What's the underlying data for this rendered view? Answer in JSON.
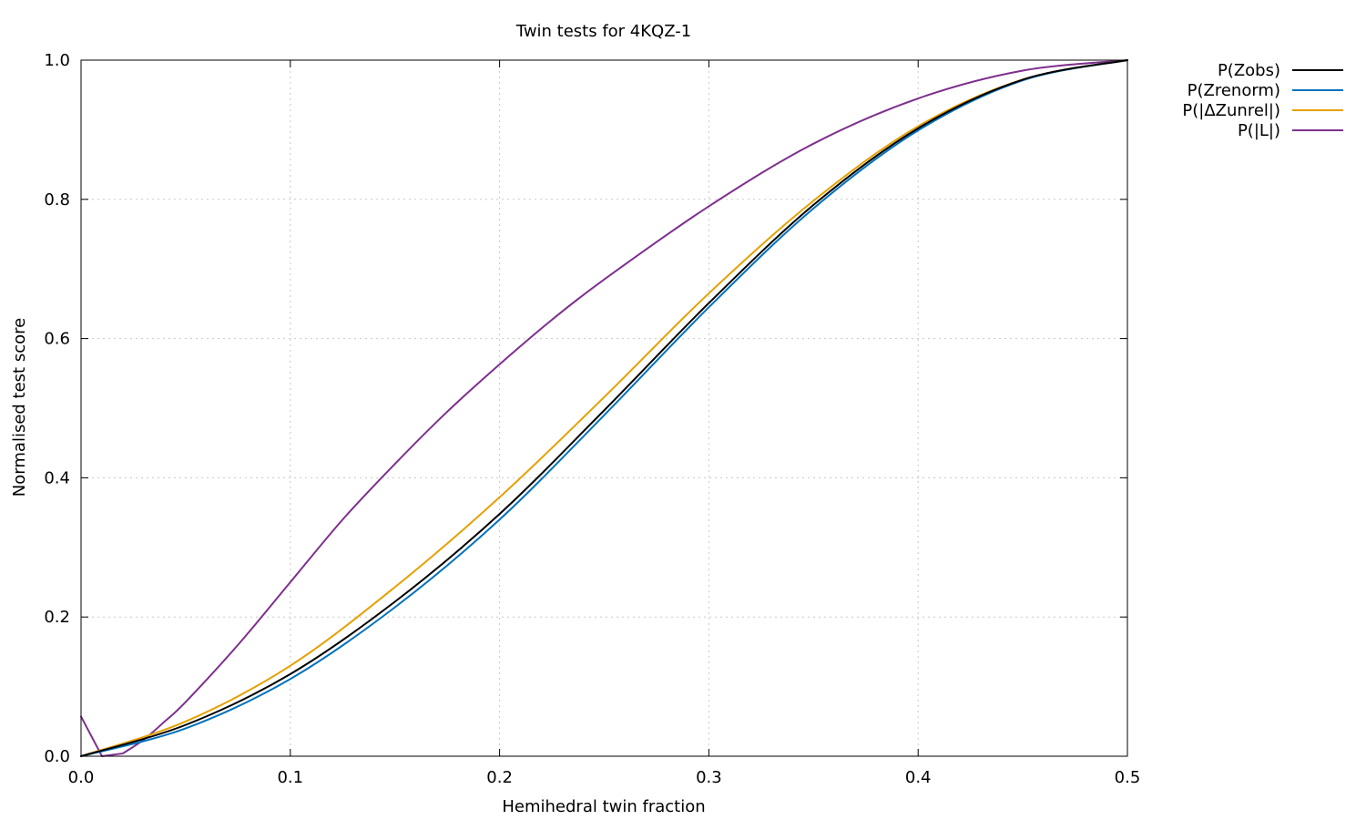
{
  "chart_data": {
    "type": "line",
    "title": "Twin tests for 4KQZ-1",
    "xlabel": "Hemihedral twin fraction",
    "ylabel": "Normalised test score",
    "xlim": [
      0.0,
      0.5
    ],
    "ylim": [
      0.0,
      1.0
    ],
    "xticks": [
      0.0,
      0.1,
      0.2,
      0.3,
      0.4,
      0.5
    ],
    "yticks": [
      0.0,
      0.2,
      0.4,
      0.6,
      0.8,
      1.0
    ],
    "xtick_labels": [
      "0.0",
      "0.1",
      "0.2",
      "0.3",
      "0.4",
      "0.5"
    ],
    "ytick_labels": [
      "0.0",
      "0.2",
      "0.4",
      "0.6",
      "0.8",
      "1.0"
    ],
    "grid": true,
    "legend_position": "outside-top-right",
    "series": [
      {
        "name": "P(Zobs)",
        "color": "#000000",
        "x": [
          0.0,
          0.05,
          0.1,
          0.15,
          0.2,
          0.25,
          0.3,
          0.35,
          0.4,
          0.45,
          0.5
        ],
        "y": [
          0.0,
          0.045,
          0.118,
          0.222,
          0.348,
          0.497,
          0.651,
          0.792,
          0.902,
          0.972,
          1.0
        ]
      },
      {
        "name": "P(Zrenorm)",
        "color": "#0072bd",
        "x": [
          0.0,
          0.05,
          0.1,
          0.15,
          0.2,
          0.25,
          0.3,
          0.35,
          0.4,
          0.45,
          0.5
        ],
        "y": [
          0.0,
          0.04,
          0.111,
          0.214,
          0.34,
          0.49,
          0.645,
          0.787,
          0.899,
          0.971,
          1.0
        ]
      },
      {
        "name": "P(|ΔZunrel|)",
        "color": "#e6a000",
        "x": [
          0.0,
          0.05,
          0.1,
          0.15,
          0.2,
          0.25,
          0.3,
          0.35,
          0.4,
          0.45,
          0.5
        ],
        "y": [
          0.0,
          0.05,
          0.13,
          0.243,
          0.372,
          0.516,
          0.665,
          0.798,
          0.905,
          0.972,
          1.0
        ]
      },
      {
        "name": "P(|L|)",
        "color": "#7e2f8e",
        "x": [
          0.0,
          0.01,
          0.02,
          0.03,
          0.04,
          0.05,
          0.075,
          0.1,
          0.125,
          0.15,
          0.175,
          0.2,
          0.225,
          0.25,
          0.3,
          0.35,
          0.4,
          0.45,
          0.5
        ],
        "y": [
          0.057,
          0.0,
          0.004,
          0.024,
          0.05,
          0.078,
          0.16,
          0.25,
          0.34,
          0.42,
          0.495,
          0.563,
          0.627,
          0.685,
          0.79,
          0.88,
          0.945,
          0.985,
          1.0
        ]
      }
    ]
  }
}
